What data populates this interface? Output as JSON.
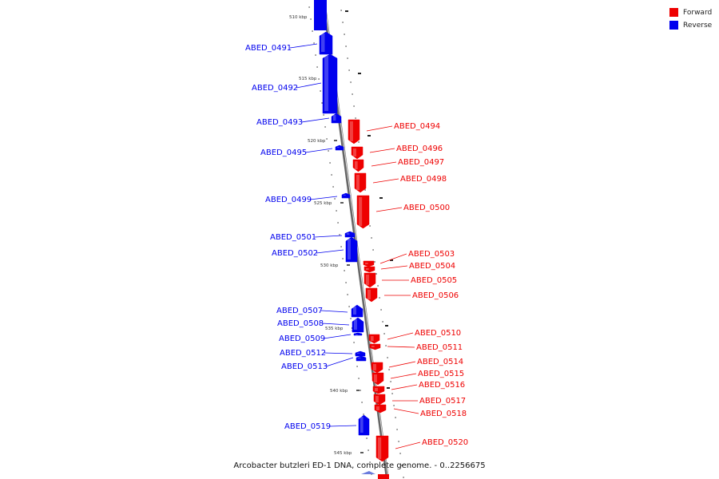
{
  "legend": {
    "forward_label": "Forward",
    "reverse_label": "Reverse",
    "forward_color": "#ee0000",
    "reverse_color": "#0000ee"
  },
  "caption": "Arcobacter butzleri ED-1 DNA, complete genome. - 0..2256675",
  "ticks": [
    "510 kbp",
    "515 kbp",
    "520 kbp",
    "525 kbp",
    "530 kbp",
    "535 kbp",
    "540 kbp",
    "545 kbp"
  ],
  "genes": [
    {
      "label": "ABED_0491",
      "strand": "reverse"
    },
    {
      "label": "ABED_0492",
      "strand": "reverse"
    },
    {
      "label": "ABED_0493",
      "strand": "reverse"
    },
    {
      "label": "ABED_0494",
      "strand": "forward"
    },
    {
      "label": "ABED_0495",
      "strand": "reverse"
    },
    {
      "label": "ABED_0496",
      "strand": "forward"
    },
    {
      "label": "ABED_0497",
      "strand": "forward"
    },
    {
      "label": "ABED_0498",
      "strand": "forward"
    },
    {
      "label": "ABED_0499",
      "strand": "reverse"
    },
    {
      "label": "ABED_0500",
      "strand": "forward"
    },
    {
      "label": "ABED_0501",
      "strand": "reverse"
    },
    {
      "label": "ABED_0502",
      "strand": "reverse"
    },
    {
      "label": "ABED_0503",
      "strand": "forward"
    },
    {
      "label": "ABED_0504",
      "strand": "forward"
    },
    {
      "label": "ABED_0505",
      "strand": "forward"
    },
    {
      "label": "ABED_0506",
      "strand": "forward"
    },
    {
      "label": "ABED_0507",
      "strand": "reverse"
    },
    {
      "label": "ABED_0508",
      "strand": "reverse"
    },
    {
      "label": "ABED_0509",
      "strand": "reverse"
    },
    {
      "label": "ABED_0510",
      "strand": "forward"
    },
    {
      "label": "ABED_0511",
      "strand": "forward"
    },
    {
      "label": "ABED_0512",
      "strand": "reverse"
    },
    {
      "label": "ABED_0513",
      "strand": "reverse"
    },
    {
      "label": "ABED_0514",
      "strand": "forward"
    },
    {
      "label": "ABED_0515",
      "strand": "forward"
    },
    {
      "label": "ABED_0516",
      "strand": "forward"
    },
    {
      "label": "ABED_0517",
      "strand": "forward"
    },
    {
      "label": "ABED_0518",
      "strand": "forward"
    },
    {
      "label": "ABED_0519",
      "strand": "reverse"
    },
    {
      "label": "ABED_0520",
      "strand": "forward"
    }
  ]
}
